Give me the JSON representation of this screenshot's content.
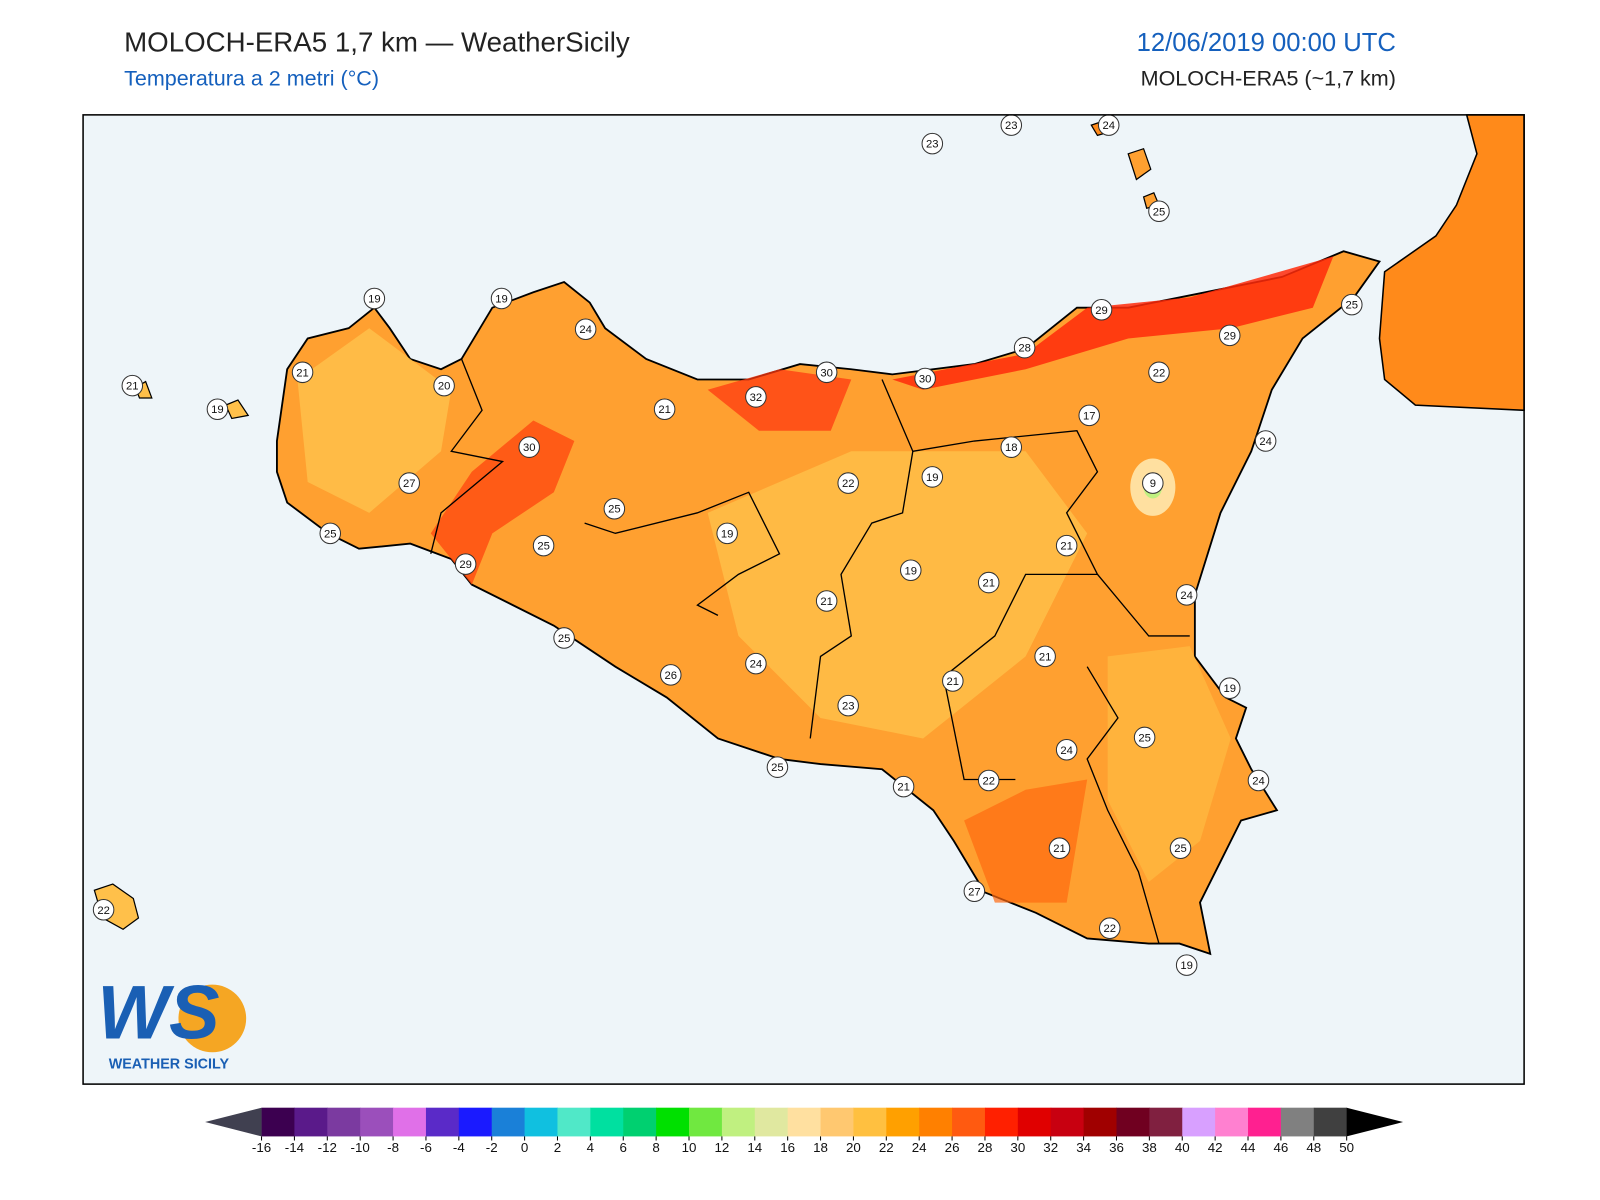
{
  "header": {
    "title": "MOLOCH-ERA5 1,7 km — WeatherSicily",
    "subtitle": "Temperatura a 2 metri (°C)",
    "date": "12/06/2019 00:00 UTC",
    "model": "MOLOCH-ERA5 (~1,7 km)"
  },
  "stations": [
    23,
    23,
    24,
    25,
    19,
    19,
    24,
    21,
    19,
    21,
    20,
    30,
    27,
    25,
    29,
    25,
    25,
    21,
    32,
    30,
    30,
    28,
    29,
    29,
    25,
    22,
    17,
    18,
    19,
    22,
    19,
    19,
    21,
    21,
    21,
    9,
    24,
    24,
    21,
    21,
    24,
    26,
    25,
    23,
    25,
    21,
    22,
    24,
    25,
    19,
    24,
    21,
    25,
    27,
    22,
    19,
    22
  ],
  "colorbar": {
    "ticks": [
      -16,
      -14,
      -12,
      -10,
      -8,
      -6,
      -4,
      -2,
      0,
      2,
      4,
      6,
      8,
      10,
      12,
      14,
      16,
      18,
      20,
      22,
      24,
      26,
      28,
      30,
      32,
      34,
      36,
      38,
      40,
      42,
      44,
      46,
      48,
      50
    ],
    "colors": [
      "#3c0050",
      "#5a1a8a",
      "#7b3aa0",
      "#9b4fbb",
      "#e070e8",
      "#5a2ac8",
      "#1a1aff",
      "#1a80d8",
      "#10c0e0",
      "#50e8c8",
      "#00e0a0",
      "#00d070",
      "#00e000",
      "#70e840",
      "#c0f080",
      "#e0e8a0",
      "#ffe0a0",
      "#ffc870",
      "#ffc040",
      "#ffa000",
      "#ff8000",
      "#ff5a10",
      "#ff2000",
      "#e00000",
      "#c80010",
      "#a00000",
      "#700020",
      "#802040",
      "#d8a0ff",
      "#ff80d0",
      "#ff2090",
      "#808080",
      "#404040"
    ],
    "under_color": "#404050",
    "over_color": "#000000"
  },
  "logo": {
    "mark": "WS",
    "name": "WEATHER SICILY"
  }
}
